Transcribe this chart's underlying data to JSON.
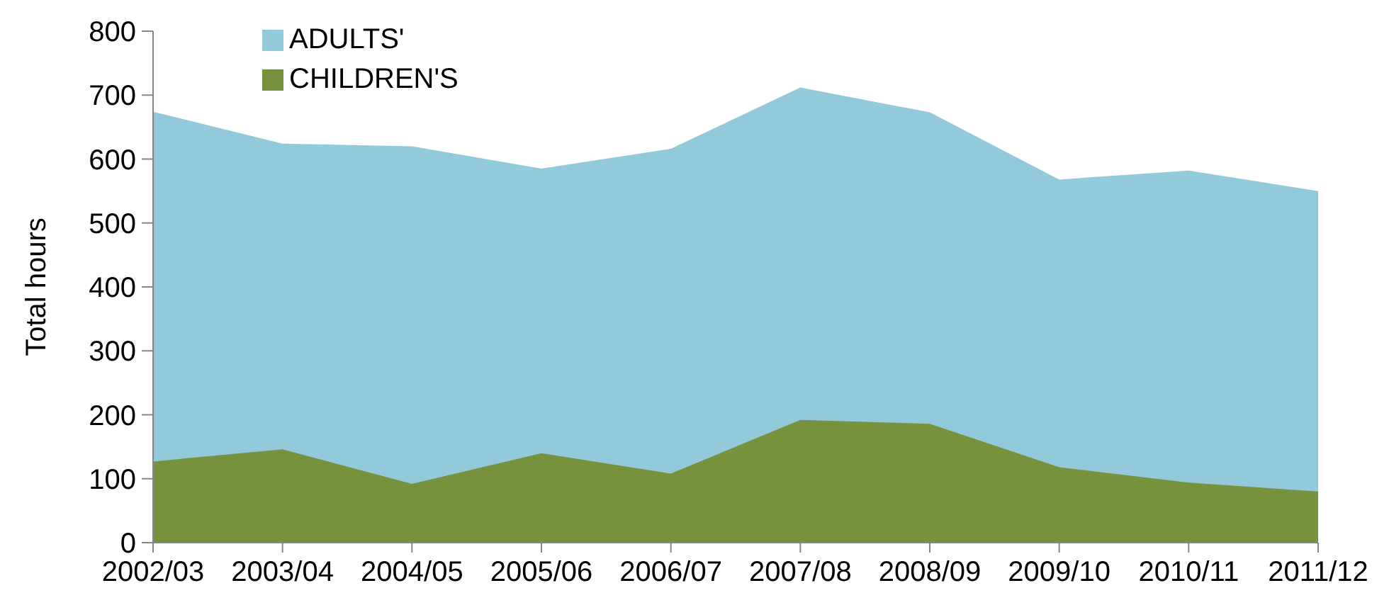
{
  "chart_data": {
    "type": "area",
    "ylabel": "Total hours",
    "categories": [
      "2002/03",
      "2003/04",
      "2004/05",
      "2005/06",
      "2006/07",
      "2007/08",
      "2008/09",
      "2009/10",
      "2010/11",
      "2011/12"
    ],
    "series": [
      {
        "name": "ADULTS'",
        "color": "#93cadb",
        "values": [
          674,
          624,
          620,
          585,
          616,
          712,
          673,
          568,
          582,
          550
        ]
      },
      {
        "name": "CHILDREN'S",
        "color": "#76923c",
        "values": [
          127,
          146,
          92,
          140,
          108,
          192,
          186,
          118,
          94,
          80
        ]
      }
    ],
    "ylim": [
      0,
      800
    ],
    "yticks": [
      0,
      100,
      200,
      300,
      400,
      500,
      600,
      700,
      800
    ],
    "legend": "top left"
  }
}
